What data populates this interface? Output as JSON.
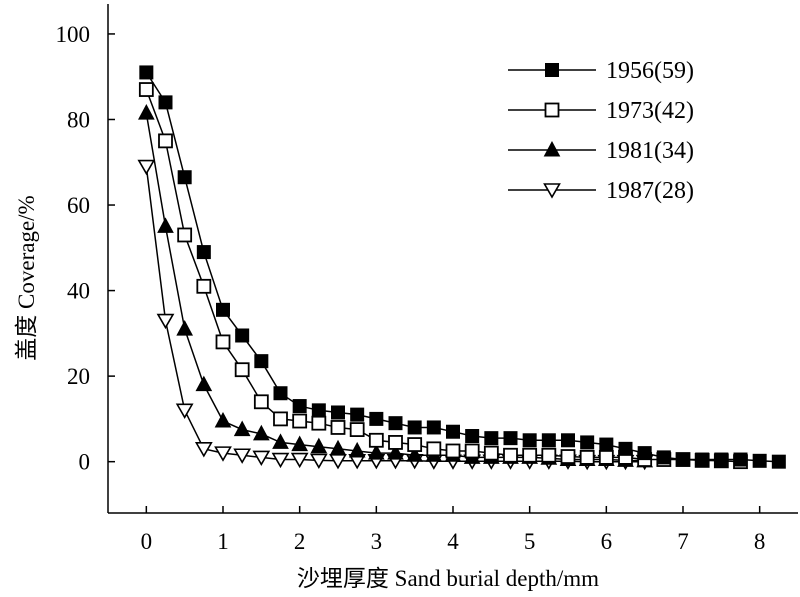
{
  "chart_data": {
    "type": "line",
    "title": "",
    "xlabel": "沙埋厚度 Sand burial depth/mm",
    "ylabel": "盖度 Coverage/%",
    "xlim": [
      -0.5,
      8.5
    ],
    "ylim": [
      -12,
      107
    ],
    "xticks": [
      0,
      1,
      2,
      3,
      4,
      5,
      6,
      7,
      8
    ],
    "yticks": [
      0,
      20,
      40,
      60,
      80,
      100
    ],
    "grid": false,
    "legend_position": "top-right",
    "series": [
      {
        "name": "1956(59)",
        "marker": "square-filled",
        "x": [
          0,
          0.25,
          0.5,
          0.75,
          1,
          1.25,
          1.5,
          1.75,
          2,
          2.25,
          2.5,
          2.75,
          3,
          3.25,
          3.5,
          3.75,
          4,
          4.25,
          4.5,
          4.75,
          5,
          5.25,
          5.5,
          5.75,
          6,
          6.25,
          6.5,
          6.75,
          7,
          7.25,
          7.5,
          7.75,
          8,
          8.25
        ],
        "y": [
          91,
          84,
          66.5,
          49,
          35.5,
          29.5,
          23.5,
          16,
          13,
          12,
          11.5,
          11,
          10,
          9,
          8,
          8,
          7,
          6,
          5.5,
          5.5,
          5,
          5,
          5,
          4.5,
          4,
          3,
          2,
          1,
          0.5,
          0.5,
          0.5,
          0.5,
          0.2,
          0
        ]
      },
      {
        "name": "1973(42)",
        "marker": "square-open",
        "x": [
          0,
          0.25,
          0.5,
          0.75,
          1,
          1.25,
          1.5,
          1.75,
          2,
          2.25,
          2.5,
          2.75,
          3,
          3.25,
          3.5,
          3.75,
          4,
          4.25,
          4.5,
          4.75,
          5,
          5.25,
          5.5,
          5.75,
          6,
          6.25,
          6.5,
          6.75,
          7,
          7.25,
          7.5,
          7.75
        ],
        "y": [
          87,
          75,
          53,
          41,
          28,
          21.5,
          14,
          10,
          9.5,
          9,
          8,
          7.5,
          5,
          4.5,
          4,
          3,
          2.5,
          2.5,
          2,
          1.5,
          1.5,
          1.5,
          1.2,
          1,
          1,
          1,
          0.5,
          0.5,
          0.5,
          0.3,
          0.2,
          0
        ]
      },
      {
        "name": "1981(34)",
        "marker": "triangle-filled",
        "x": [
          0,
          0.25,
          0.5,
          0.75,
          1,
          1.25,
          1.5,
          1.75,
          2,
          2.25,
          2.5,
          2.75,
          3,
          3.25,
          3.5,
          3.75,
          4,
          4.25,
          4.5,
          4.75,
          5,
          5.25,
          5.5,
          5.75,
          6,
          6.25,
          6.5
        ],
        "y": [
          81.5,
          55,
          31,
          18,
          9.5,
          7.5,
          6.5,
          4.5,
          4,
          3.5,
          3,
          2.5,
          2,
          2,
          1.5,
          1.5,
          1.5,
          1,
          1,
          1,
          1,
          0.8,
          0.5,
          0.5,
          0.5,
          0.3,
          0.2
        ]
      },
      {
        "name": "1987(28)",
        "marker": "triangle-down-open",
        "x": [
          0,
          0.25,
          0.5,
          0.75,
          1,
          1.25,
          1.5,
          1.75,
          2,
          2.25,
          2.5,
          2.75,
          3,
          3.25,
          3.5,
          3.75,
          4,
          4.25,
          4.5,
          4.75,
          5,
          5.25,
          5.5,
          5.75,
          6,
          6.25,
          6.5
        ],
        "y": [
          69,
          33,
          12,
          3,
          2,
          1.5,
          1,
          0.5,
          0.5,
          0.3,
          0.2,
          0.2,
          0.2,
          0.2,
          0.2,
          0.1,
          0.1,
          0.1,
          0.1,
          0.1,
          0.1,
          0.1,
          0.1,
          0,
          0,
          0,
          0
        ]
      }
    ]
  },
  "colors": {
    "ink": "#000000",
    "background": "#ffffff"
  }
}
